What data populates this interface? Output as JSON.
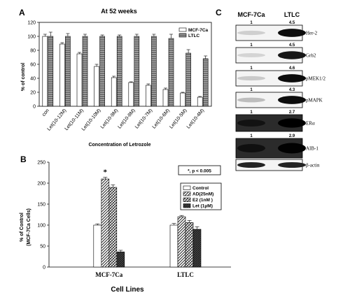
{
  "panels": {
    "a": "A",
    "b": "B",
    "c": "C"
  },
  "chart_data": [
    {
      "type": "bar",
      "panel": "A",
      "title": "At 52 weeks",
      "xlabel": "Concentration of Letrozole",
      "ylabel": "% of control",
      "ylim": [
        0,
        120
      ],
      "yticks": [
        0,
        20,
        40,
        60,
        80,
        100,
        120
      ],
      "categories": [
        "con",
        "Let(10-12M)",
        "Let(10-11M)",
        "Let(10-10M)",
        "Let(10-9M)",
        "Let(10-8M)",
        "Let(10-7M)",
        "Let(10-6M)",
        "Let(10-5M)",
        "Let(10-4M)"
      ],
      "series": [
        {
          "name": "MCF-7Ca",
          "values": [
            100,
            89,
            75,
            57,
            41,
            34,
            30,
            24,
            19,
            13
          ],
          "errors": [
            3,
            2,
            2,
            3,
            2,
            1,
            2,
            2,
            1,
            1
          ]
        },
        {
          "name": "LTLC",
          "values": [
            100,
            100,
            100,
            100,
            100,
            100,
            100,
            97,
            76,
            68
          ],
          "errors": [
            6,
            4,
            3,
            2,
            2,
            3,
            3,
            6,
            5,
            4
          ]
        }
      ],
      "legend_position": "top-right"
    },
    {
      "type": "bar",
      "panel": "B",
      "xlabel": "Cell Lines",
      "ylabel": "% of Control",
      "ylabel2": "(MCF-7Ca Cells)",
      "ylim": [
        0,
        250
      ],
      "yticks": [
        0,
        50,
        100,
        150,
        200,
        250
      ],
      "categories": [
        "MCF-7Ca",
        "LTLC"
      ],
      "series": [
        {
          "name": "Control",
          "values": [
            100,
            100
          ],
          "errors": [
            3,
            4
          ]
        },
        {
          "name": "AD(25nM)",
          "values": [
            210,
            120
          ],
          "errors": [
            4,
            3
          ]
        },
        {
          "name": "E2 (1nM )",
          "values": [
            190,
            106
          ],
          "errors": [
            6,
            5
          ]
        },
        {
          "name": "Let  (1μM)",
          "values": [
            36,
            90
          ],
          "errors": [
            4,
            6
          ]
        }
      ],
      "annotation": "*",
      "significance_note": "*, p < 0.005",
      "legend_position": "right"
    }
  ],
  "blot": {
    "columns": [
      "MCF-7Ca",
      "LTLC"
    ],
    "rows": [
      {
        "label": "Her-2",
        "values": [
          "1",
          "4.5"
        ]
      },
      {
        "label": "Grb2",
        "values": [
          "1",
          "4.5"
        ]
      },
      {
        "label": "pMEK1/2",
        "values": [
          "1",
          "4.6"
        ]
      },
      {
        "label": "pMAPK",
        "values": [
          "1",
          "4.3"
        ]
      },
      {
        "label": "ERα",
        "values": [
          "1",
          "2.7"
        ]
      },
      {
        "label": "AIB-1",
        "values": [
          "1",
          "2.9"
        ]
      },
      {
        "label": "β-actin",
        "values": [
          "",
          ""
        ]
      }
    ]
  }
}
